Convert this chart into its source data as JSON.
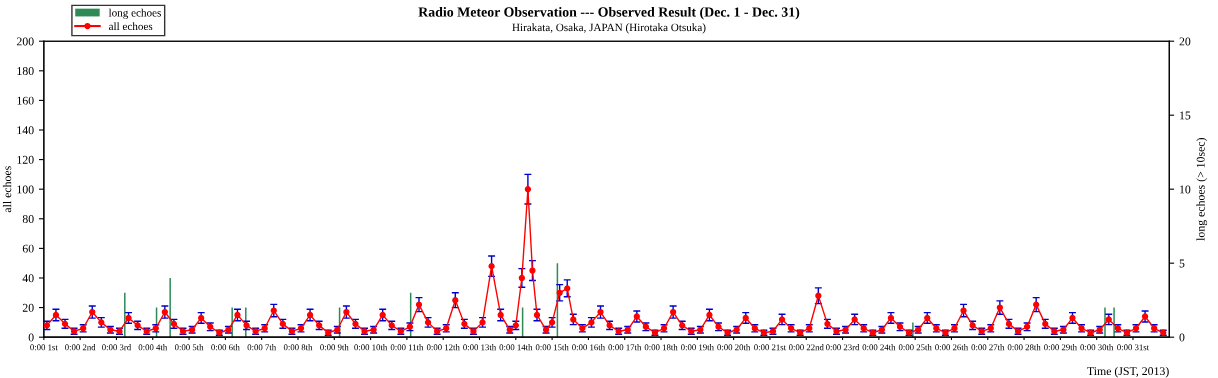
{
  "chart_data": {
    "type": "line",
    "title": "Radio Meteor Observation --- Observed Result (Dec. 1 - Dec. 31)",
    "subtitle": "Hirakata, Osaka, JAPAN (Hirotaka Otsuka)",
    "xlabel": "Time (JST, 2013)",
    "ylabel": "all echoes",
    "y2label": "long echoes (> 10sec)",
    "xlim": [
      "2013-12-01T00:00",
      "2014-01-01T00:00"
    ],
    "ylim": [
      0,
      200
    ],
    "yticks": [
      0,
      20,
      40,
      60,
      80,
      100,
      120,
      140,
      160,
      180,
      200
    ],
    "y2lim": [
      0,
      20
    ],
    "y2ticks": [
      0,
      5,
      10,
      15,
      20
    ],
    "xticks": [
      {
        "value": "2013-12-01T00:00",
        "label": "0:00 1st"
      },
      {
        "value": "2013-12-02T00:00",
        "label": "0:00 2nd"
      },
      {
        "value": "2013-12-03T00:00",
        "label": "0:00 3rd"
      },
      {
        "value": "2013-12-04T00:00",
        "label": "0:00 4th"
      },
      {
        "value": "2013-12-05T00:00",
        "label": "0:00 5th"
      },
      {
        "value": "2013-12-06T00:00",
        "label": "0:00 6th"
      },
      {
        "value": "2013-12-07T00:00",
        "label": "0:00 7th"
      },
      {
        "value": "2013-12-08T00:00",
        "label": "0:00 8th"
      },
      {
        "value": "2013-12-09T00:00",
        "label": "0:00 9th"
      },
      {
        "value": "2013-12-10T00:00",
        "label": "0:00 10th"
      },
      {
        "value": "2013-12-11T00:00",
        "label": "0:00 11th"
      },
      {
        "value": "2013-12-12T00:00",
        "label": "0:00 12th"
      },
      {
        "value": "2013-12-13T00:00",
        "label": "0:00 13th"
      },
      {
        "value": "2013-12-14T00:00",
        "label": "0:00 14th"
      },
      {
        "value": "2013-12-15T00:00",
        "label": "0:00 15th"
      },
      {
        "value": "2013-12-16T00:00",
        "label": "0:00 16th"
      },
      {
        "value": "2013-12-17T00:00",
        "label": "0:00 17th"
      },
      {
        "value": "2013-12-18T00:00",
        "label": "0:00 18th"
      },
      {
        "value": "2013-12-19T00:00",
        "label": "0:00 19th"
      },
      {
        "value": "2013-12-20T00:00",
        "label": "0:00 20th"
      },
      {
        "value": "2013-12-21T00:00",
        "label": "0:00 21st"
      },
      {
        "value": "2013-12-22T00:00",
        "label": "0:00 22nd"
      },
      {
        "value": "2013-12-23T00:00",
        "label": "0:00 23rd"
      },
      {
        "value": "2013-12-24T00:00",
        "label": "0:00 24th"
      },
      {
        "value": "2013-12-25T00:00",
        "label": "0:00 25th"
      },
      {
        "value": "2013-12-26T00:00",
        "label": "0:00 26th"
      },
      {
        "value": "2013-12-27T00:00",
        "label": "0:00 27th"
      },
      {
        "value": "2013-12-28T00:00",
        "label": "0:00 28th"
      },
      {
        "value": "2013-12-29T00:00",
        "label": "0:00 29th"
      },
      {
        "value": "2013-12-30T00:00",
        "label": "0:00 30th"
      },
      {
        "value": "2013-12-31T00:00",
        "label": "0:00 31st"
      }
    ],
    "legend": "top left",
    "grid": false,
    "series": [
      {
        "name": "long echoes",
        "type": "bar",
        "axis": "y2",
        "color": "#2e8b57",
        "x": [
          "2013-12-03T05:00",
          "2013-12-04T02:00",
          "2013-12-04T11:00",
          "2013-12-06T04:00",
          "2013-12-06T13:00",
          "2013-12-09T03:00",
          "2013-12-11T02:00",
          "2013-12-14T04:00",
          "2013-12-15T03:00",
          "2013-12-24T22:00",
          "2013-12-30T05:00",
          "2013-12-30T11:00"
        ],
        "values": [
          3,
          2,
          4,
          2,
          2,
          2,
          3,
          2,
          5,
          1,
          2,
          2
        ]
      },
      {
        "name": "all echoes",
        "color": "#ff0000",
        "marker": "circle",
        "line_style": "solid",
        "x": [
          "2013-12-01T02:00",
          "2013-12-01T08:00",
          "2013-12-01T14:00",
          "2013-12-01T20:00",
          "2013-12-02T02:00",
          "2013-12-02T08:00",
          "2013-12-02T14:00",
          "2013-12-02T20:00",
          "2013-12-03T02:00",
          "2013-12-03T08:00",
          "2013-12-03T14:00",
          "2013-12-03T20:00",
          "2013-12-04T02:00",
          "2013-12-04T08:00",
          "2013-12-04T14:00",
          "2013-12-04T20:00",
          "2013-12-05T02:00",
          "2013-12-05T08:00",
          "2013-12-05T14:00",
          "2013-12-05T20:00",
          "2013-12-06T02:00",
          "2013-12-06T08:00",
          "2013-12-06T14:00",
          "2013-12-06T20:00",
          "2013-12-07T02:00",
          "2013-12-07T08:00",
          "2013-12-07T14:00",
          "2013-12-07T20:00",
          "2013-12-08T02:00",
          "2013-12-08T08:00",
          "2013-12-08T14:00",
          "2013-12-08T20:00",
          "2013-12-09T02:00",
          "2013-12-09T08:00",
          "2013-12-09T14:00",
          "2013-12-09T20:00",
          "2013-12-10T02:00",
          "2013-12-10T08:00",
          "2013-12-10T14:00",
          "2013-12-10T20:00",
          "2013-12-11T02:00",
          "2013-12-11T08:00",
          "2013-12-11T14:00",
          "2013-12-11T20:00",
          "2013-12-12T02:00",
          "2013-12-12T08:00",
          "2013-12-12T14:00",
          "2013-12-12T20:00",
          "2013-12-13T02:00",
          "2013-12-13T08:00",
          "2013-12-13T14:00",
          "2013-12-13T20:00",
          "2013-12-14T00:00",
          "2013-12-14T04:00",
          "2013-12-14T08:00",
          "2013-12-14T11:00",
          "2013-12-14T14:00",
          "2013-12-14T20:00",
          "2013-12-15T00:00",
          "2013-12-15T05:00",
          "2013-12-15T10:00",
          "2013-12-15T14:00",
          "2013-12-15T20:00",
          "2013-12-16T02:00",
          "2013-12-16T08:00",
          "2013-12-16T14:00",
          "2013-12-16T20:00",
          "2013-12-17T02:00",
          "2013-12-17T08:00",
          "2013-12-17T14:00",
          "2013-12-17T20:00",
          "2013-12-18T02:00",
          "2013-12-18T08:00",
          "2013-12-18T14:00",
          "2013-12-18T20:00",
          "2013-12-19T02:00",
          "2013-12-19T08:00",
          "2013-12-19T14:00",
          "2013-12-19T20:00",
          "2013-12-20T02:00",
          "2013-12-20T08:00",
          "2013-12-20T14:00",
          "2013-12-20T20:00",
          "2013-12-21T02:00",
          "2013-12-21T08:00",
          "2013-12-21T14:00",
          "2013-12-21T20:00",
          "2013-12-22T02:00",
          "2013-12-22T08:00",
          "2013-12-22T14:00",
          "2013-12-22T20:00",
          "2013-12-23T02:00",
          "2013-12-23T08:00",
          "2013-12-23T14:00",
          "2013-12-23T20:00",
          "2013-12-24T02:00",
          "2013-12-24T08:00",
          "2013-12-24T14:00",
          "2013-12-24T20:00",
          "2013-12-25T02:00",
          "2013-12-25T08:00",
          "2013-12-25T14:00",
          "2013-12-25T20:00",
          "2013-12-26T02:00",
          "2013-12-26T08:00",
          "2013-12-26T14:00",
          "2013-12-26T20:00",
          "2013-12-27T02:00",
          "2013-12-27T08:00",
          "2013-12-27T14:00",
          "2013-12-27T20:00",
          "2013-12-28T02:00",
          "2013-12-28T08:00",
          "2013-12-28T14:00",
          "2013-12-28T20:00",
          "2013-12-29T02:00",
          "2013-12-29T08:00",
          "2013-12-29T14:00",
          "2013-12-29T20:00",
          "2013-12-30T02:00",
          "2013-12-30T08:00",
          "2013-12-30T14:00",
          "2013-12-30T20:00",
          "2013-12-31T02:00",
          "2013-12-31T08:00",
          "2013-12-31T14:00",
          "2013-12-31T20:00"
        ],
        "values": [
          8,
          15,
          9,
          4,
          6,
          17,
          10,
          5,
          4,
          13,
          8,
          4,
          6,
          17,
          9,
          4,
          5,
          13,
          7,
          3,
          5,
          15,
          8,
          4,
          6,
          18,
          9,
          4,
          6,
          15,
          8,
          3,
          5,
          17,
          9,
          4,
          5,
          15,
          8,
          4,
          7,
          22,
          10,
          4,
          6,
          25,
          9,
          4,
          10,
          48,
          15,
          5,
          8,
          40,
          100,
          45,
          15,
          5,
          10,
          30,
          33,
          12,
          6,
          10,
          17,
          8,
          4,
          5,
          14,
          7,
          3,
          6,
          17,
          8,
          4,
          5,
          15,
          7,
          3,
          5,
          13,
          6,
          3,
          4,
          12,
          6,
          3,
          6,
          28,
          9,
          4,
          5,
          12,
          6,
          3,
          5,
          13,
          7,
          3,
          5,
          13,
          6,
          3,
          6,
          18,
          8,
          4,
          6,
          20,
          9,
          4,
          7,
          22,
          9,
          4,
          5,
          13,
          6,
          3,
          5,
          12,
          6,
          3,
          6,
          14,
          6,
          3
        ],
        "errors": [
          2.8,
          3.9,
          3,
          2,
          2.4,
          4.1,
          3.2,
          2.2,
          2,
          3.6,
          2.8,
          2,
          2.4,
          4.1,
          3,
          2,
          2.2,
          3.6,
          2.6,
          1.7,
          2.2,
          3.9,
          2.8,
          2,
          2.4,
          4.2,
          3,
          2,
          2.4,
          3.9,
          2.8,
          1.7,
          2.2,
          4.1,
          3,
          2,
          2.2,
          3.9,
          2.8,
          2,
          2.6,
          4.7,
          3.2,
          2,
          2.4,
          5,
          3,
          2,
          3.2,
          6.9,
          3.9,
          2.2,
          2.8,
          6.3,
          10,
          6.7,
          3.9,
          2.2,
          3.2,
          5.5,
          5.7,
          3.5,
          2.4,
          3.2,
          4.1,
          2.8,
          2,
          2.2,
          3.7,
          2.6,
          1.7,
          2.4,
          4.1,
          2.8,
          2,
          2.2,
          3.9,
          2.6,
          1.7,
          2.2,
          3.6,
          2.4,
          1.7,
          2,
          3.5,
          2.4,
          1.7,
          2.4,
          5.3,
          3,
          2,
          2.2,
          3.5,
          2.4,
          1.7,
          2.2,
          3.6,
          2.6,
          1.7,
          2.2,
          3.6,
          2.4,
          1.7,
          2.4,
          4.2,
          2.8,
          2,
          2.4,
          4.5,
          3,
          2,
          2.6,
          4.7,
          3,
          2,
          2.2,
          3.6,
          2.4,
          1.7,
          2.2,
          3.5,
          2.4,
          1.7,
          2.4,
          3.7,
          2.4,
          1.7
        ]
      }
    ]
  }
}
